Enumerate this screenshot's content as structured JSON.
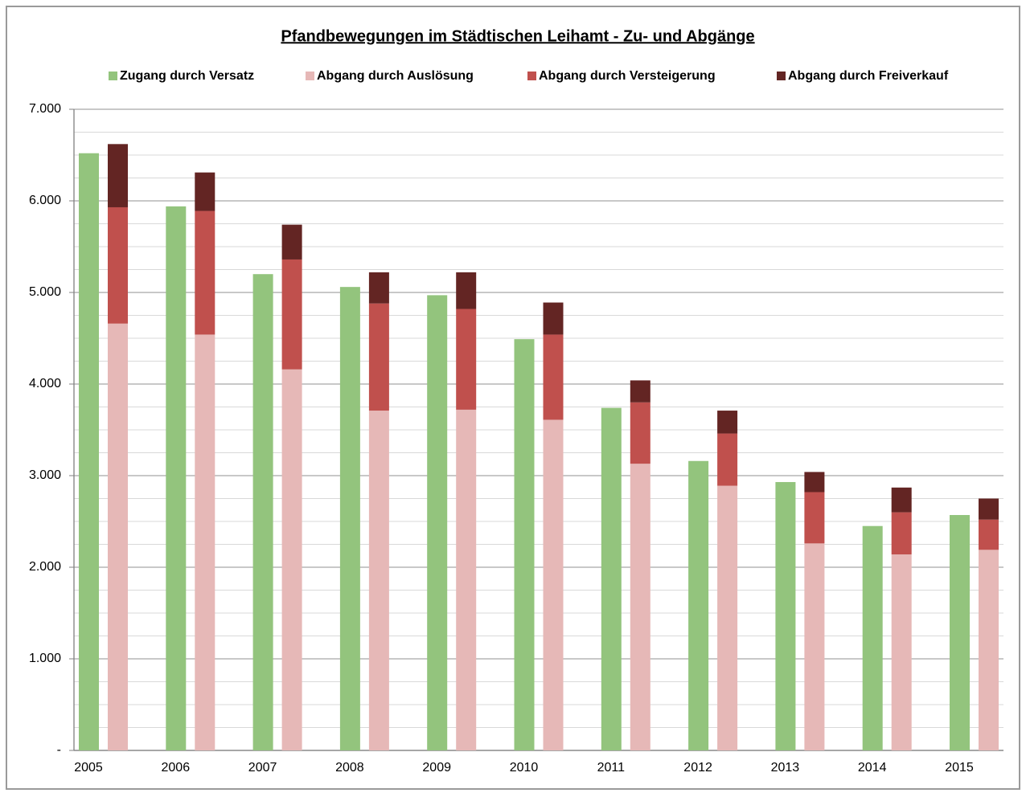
{
  "chart_data": {
    "type": "grouped_stacked_bar",
    "title": "Pfandbewegungen im Städtischen Leihamt - Zu- und Abgänge",
    "categories": [
      "2005",
      "2006",
      "2007",
      "2008",
      "2009",
      "2010",
      "2011",
      "2012",
      "2013",
      "2014",
      "2015"
    ],
    "series": [
      {
        "name": "Zugang durch Versatz",
        "color": "#93c47d",
        "stack": "zugang",
        "values": [
          6520,
          5940,
          5200,
          5060,
          4970,
          4490,
          3740,
          3160,
          2930,
          2450,
          2570
        ]
      },
      {
        "name": "Abgang durch Auslösung",
        "color": "#e6b8b7",
        "stack": "abgang",
        "values": [
          4660,
          4540,
          4160,
          3710,
          3720,
          3610,
          3130,
          2890,
          2260,
          2140,
          2190
        ]
      },
      {
        "name": "Abgang durch Versteigerung",
        "color": "#c0504d",
        "stack": "abgang",
        "values": [
          1270,
          1350,
          1200,
          1170,
          1100,
          930,
          670,
          570,
          560,
          460,
          330
        ]
      },
      {
        "name": "Abgang durch Freiverkauf",
        "color": "#632523",
        "stack": "abgang",
        "values": [
          690,
          420,
          380,
          340,
          400,
          350,
          240,
          250,
          220,
          270,
          230
        ]
      }
    ],
    "ylim": [
      0,
      7000
    ],
    "yticks": [
      {
        "value": 0,
        "label": "-"
      },
      {
        "value": 1000,
        "label": "1.000"
      },
      {
        "value": 2000,
        "label": "2.000"
      },
      {
        "value": 3000,
        "label": "3.000"
      },
      {
        "value": 4000,
        "label": "4.000"
      },
      {
        "value": 5000,
        "label": "5.000"
      },
      {
        "value": 6000,
        "label": "6.000"
      },
      {
        "value": 7000,
        "label": "7.000"
      }
    ],
    "minor_yticks": [
      250,
      500,
      750,
      1250,
      1500,
      1750,
      2250,
      2500,
      2750,
      3250,
      3500,
      3750,
      4250,
      4500,
      4750,
      5250,
      5500,
      5750,
      6250,
      6500,
      6750
    ],
    "grid": true
  }
}
